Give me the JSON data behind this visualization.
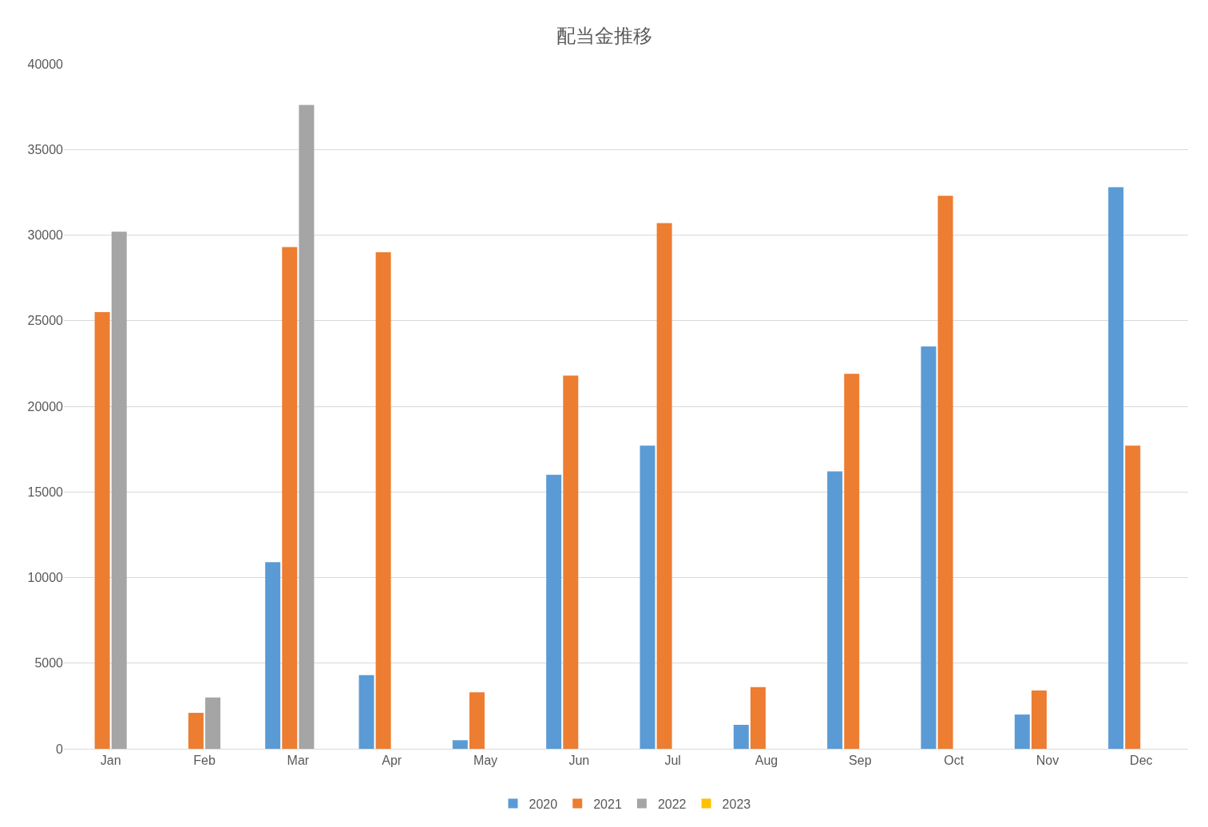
{
  "chart_data": {
    "type": "bar",
    "title": "配当金推移",
    "categories": [
      "Jan",
      "Feb",
      "Mar",
      "Apr",
      "May",
      "Jun",
      "Jul",
      "Aug",
      "Sep",
      "Oct",
      "Nov",
      "Dec"
    ],
    "series": [
      {
        "name": "2020",
        "color": "#5b9bd5",
        "values": [
          null,
          null,
          10900,
          4300,
          500,
          16000,
          17700,
          1400,
          16200,
          23500,
          2000,
          32800
        ]
      },
      {
        "name": "2021",
        "color": "#ed7d31",
        "values": [
          25500,
          2100,
          29300,
          29000,
          3300,
          21800,
          30700,
          3600,
          21900,
          32300,
          3400,
          17700
        ]
      },
      {
        "name": "2022",
        "color": "#a5a5a5",
        "values": [
          30200,
          3000,
          37600,
          null,
          null,
          null,
          null,
          null,
          null,
          null,
          null,
          null
        ]
      },
      {
        "name": "2023",
        "color": "#ffc000",
        "values": [
          null,
          null,
          null,
          null,
          null,
          null,
          null,
          null,
          null,
          null,
          null,
          null
        ]
      }
    ],
    "ylim": [
      0,
      40000
    ],
    "yticks": [
      0,
      5000,
      10000,
      15000,
      20000,
      25000,
      30000,
      35000,
      40000
    ],
    "grid": "y",
    "legend": "bottom"
  }
}
